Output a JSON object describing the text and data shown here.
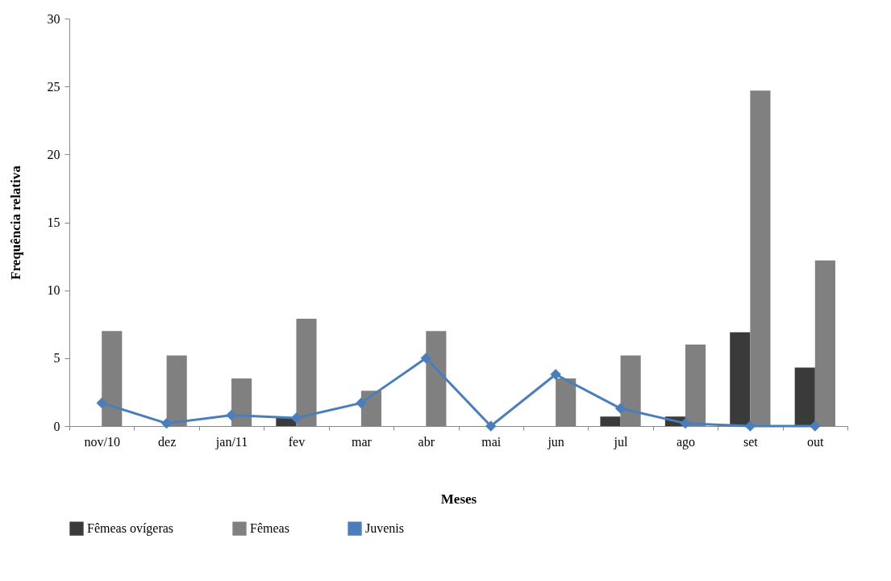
{
  "chart_data": {
    "type": "bar",
    "xlabel": "Meses",
    "ylabel": "Frequência relativa",
    "categories": [
      "nov/10",
      "dez",
      "jan/11",
      "fev",
      "mar",
      "abr",
      "mai",
      "jun",
      "jul",
      "ago",
      "set",
      "out"
    ],
    "series": [
      {
        "name": "Fêmeas ovígeras",
        "color": "#3a3a3a",
        "values": [
          0,
          0,
          0,
          0.6,
          0,
          0,
          0,
          0,
          0.7,
          0.7,
          6.9,
          4.3
        ]
      },
      {
        "name": "Fêmeas",
        "color": "#808080",
        "values": [
          7.0,
          5.2,
          3.5,
          7.9,
          2.6,
          7.0,
          0,
          3.5,
          5.2,
          6.0,
          24.7,
          12.2
        ]
      },
      {
        "name": "Juvenis",
        "type": "line",
        "color": "#4a7ebb",
        "marker": "diamond",
        "values": [
          1.7,
          0.2,
          0.8,
          0.6,
          1.7,
          5.0,
          0,
          3.8,
          1.3,
          0.2,
          0,
          0
        ]
      }
    ],
    "ylim": [
      0,
      30
    ],
    "yticks": [
      0,
      5,
      10,
      15,
      20,
      25,
      30
    ],
    "grid": false,
    "legend": "bottom"
  }
}
